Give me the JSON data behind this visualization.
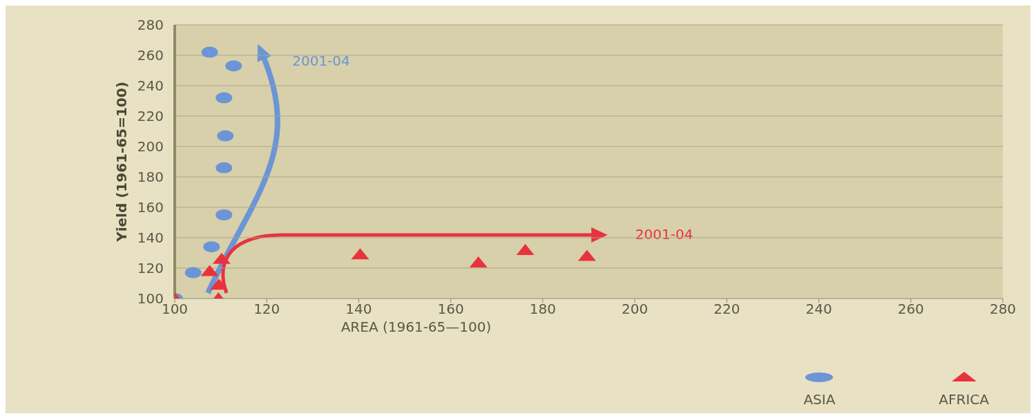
{
  "chart_data": {
    "type": "scatter",
    "xlabel": "AREA (1961-65—100)",
    "ylabel": "Yield (1961-65=100)",
    "xlim": [
      100,
      280
    ],
    "xticks": [
      100,
      120,
      140,
      160,
      180,
      200,
      220,
      240,
      260,
      280
    ],
    "ylim": [
      100,
      280
    ],
    "yticks": [
      100,
      120,
      140,
      160,
      180,
      200,
      220,
      240,
      260,
      280
    ],
    "grid": "y",
    "legend": "bottom right",
    "series": [
      {
        "name": "ASIA",
        "color": "#6b95d6",
        "marker": "circle",
        "x": [
          100,
          104,
          108,
          110.7,
          110.7,
          111,
          110.7,
          112.8,
          107.6
        ],
        "values": [
          100,
          117,
          134,
          155,
          186,
          207,
          232,
          253,
          262
        ]
      },
      {
        "name": "AFRICA",
        "color": "#e8333f",
        "marker": "triangle",
        "x": [
          100,
          109.5,
          109.6,
          107.6,
          110.2,
          140.3,
          166,
          176.2,
          189.6
        ],
        "values": [
          100,
          100,
          109,
          118,
          126,
          129,
          123.6,
          131.8,
          128
        ]
      }
    ],
    "annotations": [
      "2001-04",
      "2001-04"
    ]
  }
}
